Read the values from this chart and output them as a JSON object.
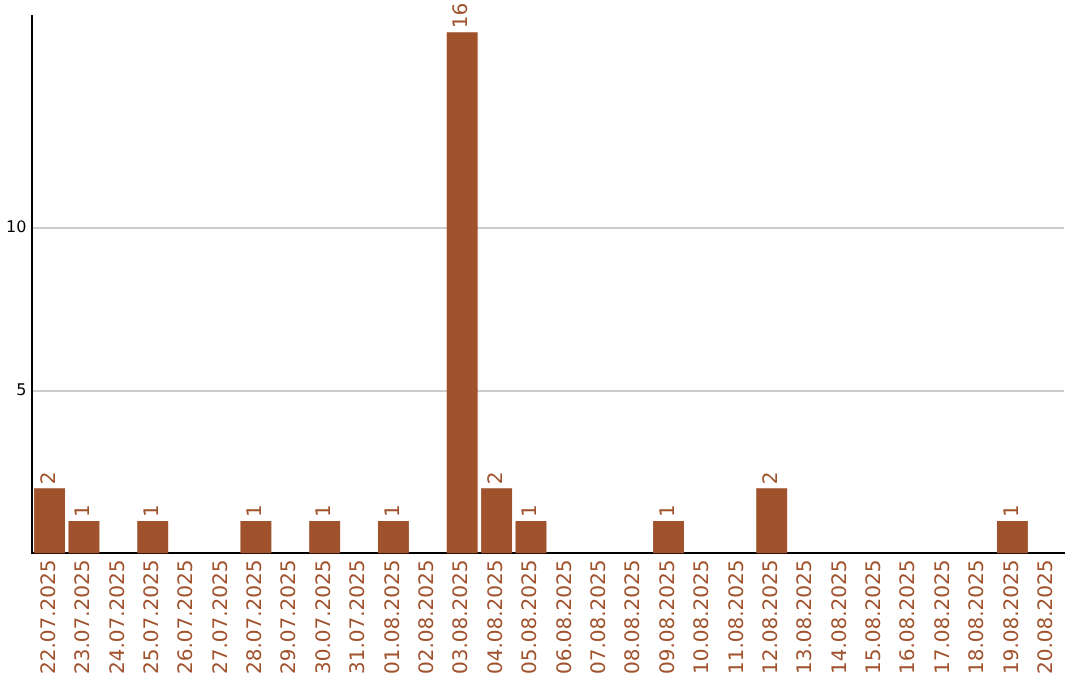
{
  "chart_data": {
    "type": "bar",
    "categories": [
      "22.07.2025",
      "23.07.2025",
      "24.07.2025",
      "25.07.2025",
      "26.07.2025",
      "27.07.2025",
      "28.07.2025",
      "29.07.2025",
      "30.07.2025",
      "31.07.2025",
      "01.08.2025",
      "02.08.2025",
      "03.08.2025",
      "04.08.2025",
      "05.08.2025",
      "06.08.2025",
      "07.08.2025",
      "08.08.2025",
      "09.08.2025",
      "10.08.2025",
      "11.08.2025",
      "12.08.2025",
      "13.08.2025",
      "14.08.2025",
      "15.08.2025",
      "16.08.2025",
      "17.08.2025",
      "18.08.2025",
      "19.08.2025",
      "20.08.2025"
    ],
    "values": [
      2,
      1,
      0,
      1,
      0,
      0,
      1,
      0,
      1,
      0,
      1,
      0,
      16,
      2,
      1,
      0,
      0,
      0,
      1,
      0,
      0,
      2,
      0,
      0,
      0,
      0,
      0,
      0,
      1,
      0
    ],
    "value_labels": [
      "2",
      "1",
      null,
      "1",
      null,
      null,
      "1",
      null,
      "1",
      null,
      "1",
      null,
      "16",
      "2",
      "1",
      null,
      null,
      null,
      "1",
      null,
      null,
      "2",
      null,
      null,
      null,
      null,
      null,
      null,
      "1",
      null
    ],
    "color": "#a0522d",
    "ylim": [
      0,
      16.5
    ],
    "yticks": [
      5,
      10
    ],
    "grid": "y",
    "legend": false
  }
}
